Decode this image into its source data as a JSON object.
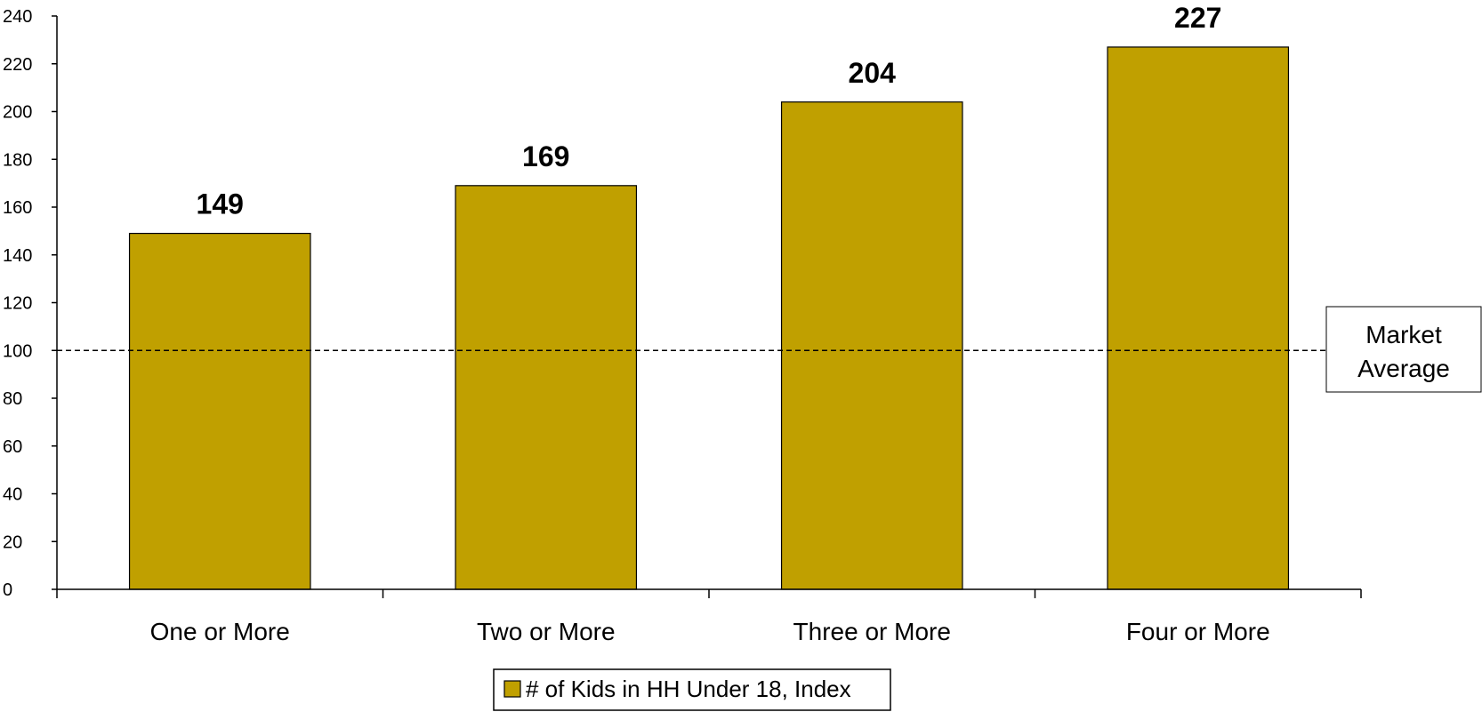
{
  "chart_data": {
    "type": "bar",
    "categories": [
      "One or More",
      "Two or More",
      "Three or More",
      "Four or More"
    ],
    "series": [
      {
        "name": "# of Kids in HH Under 18, Index",
        "values": [
          149,
          169,
          204,
          227
        ],
        "color": "#C0A000"
      }
    ],
    "data_labels": [
      "149",
      "169",
      "204",
      "227"
    ],
    "ylim": [
      0,
      240
    ],
    "yticks": [
      0,
      20,
      40,
      60,
      80,
      100,
      120,
      140,
      160,
      180,
      200,
      220,
      240
    ],
    "reference_line": {
      "value": 100,
      "label_line1": "Market",
      "label_line2": "Average",
      "style": "dashed"
    },
    "legend": {
      "position": "bottom-center"
    },
    "grid": false,
    "title": "",
    "xlabel": "",
    "ylabel": ""
  }
}
